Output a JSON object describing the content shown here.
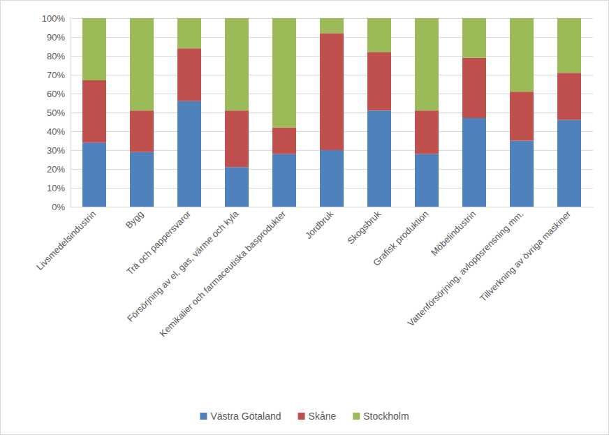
{
  "chart_data": {
    "type": "bar",
    "stacked": true,
    "grid": true,
    "legend": "bottom",
    "categories": [
      "Livsmedelsindustrin",
      "Bygg",
      "Trä och pappersvaror",
      "Försörjning av el, gas, värme och kyla",
      "Kemikalier och farmaceutiska basprodukter",
      "Jordbruk",
      "Skogsbruk",
      "Grafisk produktion",
      "Möbelindustrin",
      "Vattenförsörjning, avloppsrensning mm.",
      "Tillverkning av övriga maskiner"
    ],
    "series": [
      {
        "name": "Västra Götaland",
        "color": "#4f81bd",
        "values": [
          34,
          29,
          56,
          21,
          28,
          30,
          51,
          28,
          47,
          35,
          46
        ]
      },
      {
        "name": "Skåne",
        "color": "#c0504d",
        "values": [
          33,
          22,
          28,
          30,
          14,
          62,
          31,
          23,
          32,
          26,
          25
        ]
      },
      {
        "name": "Stockholm",
        "color": "#9bbb59",
        "values": [
          33,
          49,
          16,
          49,
          58,
          8,
          18,
          49,
          21,
          39,
          29
        ]
      }
    ],
    "ylim": [
      0,
      100
    ],
    "yticks": [
      {
        "value": 0,
        "label": "0%"
      },
      {
        "value": 10,
        "label": "10%"
      },
      {
        "value": 20,
        "label": "20%"
      },
      {
        "value": 30,
        "label": "30%"
      },
      {
        "value": 40,
        "label": "40%"
      },
      {
        "value": 50,
        "label": "50%"
      },
      {
        "value": 60,
        "label": "60%"
      },
      {
        "value": 70,
        "label": "70%"
      },
      {
        "value": 80,
        "label": "80%"
      },
      {
        "value": 90,
        "label": "90%"
      },
      {
        "value": 100,
        "label": "100%"
      }
    ]
  }
}
